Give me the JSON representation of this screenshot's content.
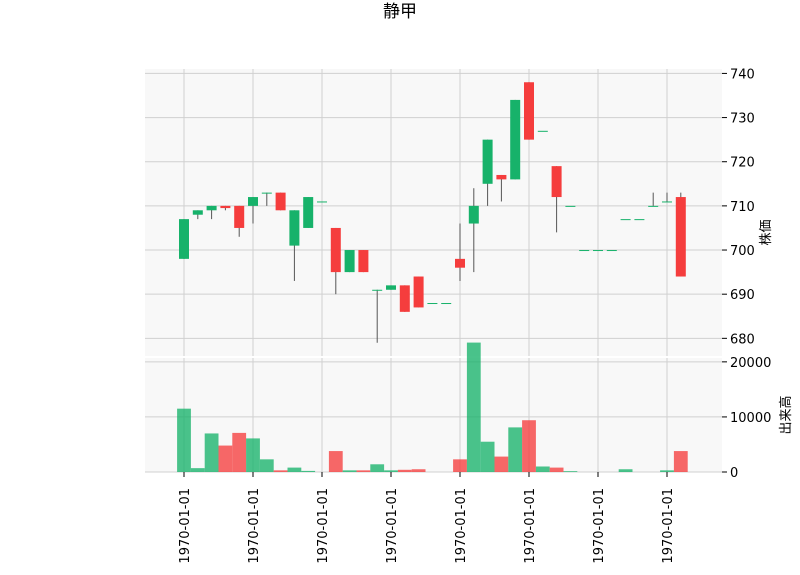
{
  "chart_data": {
    "type": "candlestick",
    "title": "静甲",
    "x_tick_labels": [
      "1970-01-01",
      "1970-01-01",
      "1970-01-01",
      "1970-01-01",
      "1970-01-01",
      "1970-01-01",
      "1970-01-01",
      "1970-01-01"
    ],
    "x_tick_positions": [
      0,
      5,
      10,
      15,
      20,
      25,
      30,
      35
    ],
    "price_axis": {
      "label": "株価",
      "ticks": [
        680,
        690,
        700,
        710,
        720,
        730,
        740
      ],
      "ylim": [
        676,
        741
      ]
    },
    "volume_axis": {
      "label": "出来高",
      "ticks": [
        0,
        10000,
        20000
      ],
      "ylim": [
        0,
        20700
      ]
    },
    "colors": {
      "up": "#17b26a",
      "down": "#f53d3d",
      "wick": "#555555",
      "grid": "#d0d0d0",
      "panel_bg": "#f8f8f8"
    },
    "candles": [
      {
        "open": 698,
        "high": 707,
        "low": 698,
        "close": 707,
        "volume": 11500
      },
      {
        "open": 708,
        "high": 709,
        "low": 707,
        "close": 709,
        "volume": 700
      },
      {
        "open": 709,
        "high": 710,
        "low": 707,
        "close": 710,
        "volume": 7000
      },
      {
        "open": 710,
        "high": 710,
        "low": 709,
        "close": 709.5,
        "volume": 4800
      },
      {
        "open": 710,
        "high": 710,
        "low": 703,
        "close": 705,
        "volume": 7100
      },
      {
        "open": 710,
        "high": 712,
        "low": 706,
        "close": 712,
        "volume": 6100
      },
      {
        "open": 713,
        "high": 713,
        "low": 710,
        "close": 713,
        "volume": 2300
      },
      {
        "open": 713,
        "high": 713,
        "low": 709,
        "close": 709,
        "volume": 300
      },
      {
        "open": 701,
        "high": 709,
        "low": 693,
        "close": 709,
        "volume": 800
      },
      {
        "open": 705,
        "high": 712,
        "low": 705,
        "close": 712,
        "volume": 200
      },
      {
        "open": 711,
        "high": 711,
        "low": 711,
        "close": 711,
        "volume": 0
      },
      {
        "open": 705,
        "high": 705,
        "low": 690,
        "close": 695,
        "volume": 3800
      },
      {
        "open": 695,
        "high": 700,
        "low": 695,
        "close": 700,
        "volume": 300
      },
      {
        "open": 700,
        "high": 700,
        "low": 695,
        "close": 695,
        "volume": 300
      },
      {
        "open": 691,
        "high": 691,
        "low": 679,
        "close": 691,
        "volume": 1400
      },
      {
        "open": 691,
        "high": 692,
        "low": 691,
        "close": 692,
        "volume": 300
      },
      {
        "open": 692,
        "high": 692,
        "low": 686,
        "close": 686,
        "volume": 400
      },
      {
        "open": 694,
        "high": 694,
        "low": 687,
        "close": 687,
        "volume": 500
      },
      {
        "open": 688,
        "high": 688,
        "low": 688,
        "close": 688,
        "volume": 0
      },
      {
        "open": 688,
        "high": 688,
        "low": 688,
        "close": 688,
        "volume": 0
      },
      {
        "open": 698,
        "high": 706,
        "low": 693,
        "close": 696,
        "volume": 2300
      },
      {
        "open": 706,
        "high": 714,
        "low": 695,
        "close": 710,
        "volume": 23500
      },
      {
        "open": 715,
        "high": 725,
        "low": 710,
        "close": 725,
        "volume": 5500
      },
      {
        "open": 717,
        "high": 717,
        "low": 711,
        "close": 716,
        "volume": 2800
      },
      {
        "open": 716,
        "high": 734,
        "low": 716,
        "close": 734,
        "volume": 8100
      },
      {
        "open": 738,
        "high": 738,
        "low": 725,
        "close": 725,
        "volume": 9400
      },
      {
        "open": 727,
        "high": 727,
        "low": 727,
        "close": 727,
        "volume": 1000
      },
      {
        "open": 719,
        "high": 719,
        "low": 704,
        "close": 712,
        "volume": 800
      },
      {
        "open": 710,
        "high": 710,
        "low": 710,
        "close": 710,
        "volume": 150
      },
      {
        "open": 700,
        "high": 700,
        "low": 700,
        "close": 700,
        "volume": 0
      },
      {
        "open": 700,
        "high": 700,
        "low": 700,
        "close": 700,
        "volume": 0
      },
      {
        "open": 700,
        "high": 700,
        "low": 700,
        "close": 700,
        "volume": 0
      },
      {
        "open": 707,
        "high": 707,
        "low": 707,
        "close": 707,
        "volume": 500
      },
      {
        "open": 707,
        "high": 707,
        "low": 707,
        "close": 707,
        "volume": 0
      },
      {
        "open": 710,
        "high": 713,
        "low": 710,
        "close": 710,
        "volume": 0
      },
      {
        "open": 711,
        "high": 713,
        "low": 711,
        "close": 711,
        "volume": 300
      },
      {
        "open": 712,
        "high": 713,
        "low": 694,
        "close": 694,
        "volume": 3800
      }
    ]
  }
}
